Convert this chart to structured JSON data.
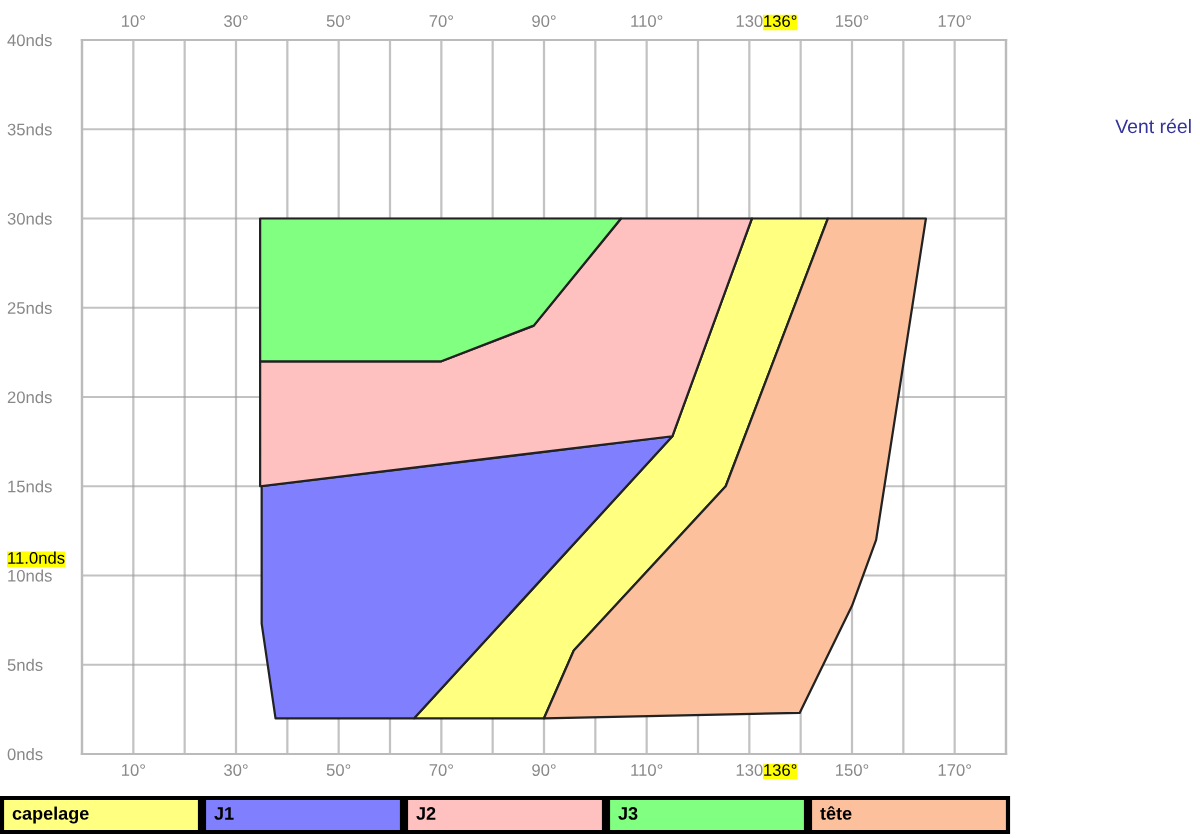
{
  "chart_data": {
    "type": "area",
    "annotations": [
      "Vent réel"
    ],
    "series": [
      {
        "name": "capelage",
        "color": "#ffff80",
        "x": [
          64.7,
          115,
          130.5,
          145.3,
          125.4,
          95.8,
          90
        ],
        "values": [
          2,
          17.8,
          30,
          30,
          15,
          5.8,
          2
        ]
      },
      {
        "name": "J1",
        "color": "#8080ff",
        "x": [
          35,
          115,
          64.7,
          37.7,
          35
        ],
        "values": [
          15,
          17.8,
          2,
          2,
          7.3
        ]
      },
      {
        "name": "J2",
        "color": "#ffc0c0",
        "x": [
          34.7,
          115,
          130.5,
          105,
          88,
          70,
          34.7
        ],
        "values": [
          15,
          17.8,
          30,
          30,
          24,
          22,
          22
        ]
      },
      {
        "name": "J3",
        "color": "#80ff80",
        "x": [
          34.7,
          105,
          88,
          70,
          34.7
        ],
        "values": [
          30,
          30,
          24,
          22,
          22
        ]
      },
      {
        "name": "tête",
        "color": "#fcc09c",
        "x": [
          90,
          95.8,
          125.4,
          145.3,
          164.4,
          154.7,
          150,
          139.8
        ],
        "values": [
          2,
          5.8,
          15,
          30,
          30,
          12,
          8.3,
          2.3
        ]
      }
    ],
    "xlim": [
      0,
      180
    ],
    "xticks": [
      {
        "value": 10,
        "label": "10°"
      },
      {
        "value": 20,
        "label": null
      },
      {
        "value": 30,
        "label": "30°"
      },
      {
        "value": 40,
        "label": null
      },
      {
        "value": 50,
        "label": "50°"
      },
      {
        "value": 60,
        "label": null
      },
      {
        "value": 70,
        "label": "70°"
      },
      {
        "value": 80,
        "label": null
      },
      {
        "value": 90,
        "label": "90°"
      },
      {
        "value": 100,
        "label": null
      },
      {
        "value": 110,
        "label": "110°"
      },
      {
        "value": 120,
        "label": null
      },
      {
        "value": 130,
        "label": "130"
      },
      {
        "value": 136,
        "label": "136°"
      },
      {
        "value": 140,
        "label": null
      },
      {
        "value": 150,
        "label": "150°"
      },
      {
        "value": 160,
        "label": null
      },
      {
        "value": 170,
        "label": "170°"
      }
    ],
    "x2lim": [
      0,
      180
    ],
    "x2ticks": [
      {
        "value": 10,
        "label": "10°"
      },
      {
        "value": 20,
        "label": null
      },
      {
        "value": 30,
        "label": "30°"
      },
      {
        "value": 40,
        "label": null
      },
      {
        "value": 50,
        "label": "50°"
      },
      {
        "value": 60,
        "label": null
      },
      {
        "value": 70,
        "label": "70°"
      },
      {
        "value": 80,
        "label": null
      },
      {
        "value": 90,
        "label": "90°"
      },
      {
        "value": 100,
        "label": null
      },
      {
        "value": 110,
        "label": "110°"
      },
      {
        "value": 120,
        "label": null
      },
      {
        "value": 130,
        "label": "130"
      },
      {
        "value": 136,
        "label": "136°"
      },
      {
        "value": 140,
        "label": null
      },
      {
        "value": 150,
        "label": "150°"
      },
      {
        "value": 160,
        "label": null
      },
      {
        "value": 170,
        "label": "170°"
      }
    ],
    "ylim": [
      0,
      40
    ],
    "yticks": [
      {
        "value": 0,
        "label": "0nds"
      },
      {
        "value": 5,
        "label": "5nds"
      },
      {
        "value": 10,
        "label": "10nds"
      },
      {
        "value": 11,
        "label": "11.0nds"
      },
      {
        "value": 15,
        "label": "15nds"
      },
      {
        "value": 20,
        "label": "20nds"
      },
      {
        "value": 25,
        "label": "25nds"
      },
      {
        "value": 30,
        "label": "30nds"
      },
      {
        "value": 35,
        "label": "35nds"
      },
      {
        "value": 40,
        "label": "40nds"
      }
    ],
    "grid": true,
    "legend": "bottom"
  }
}
